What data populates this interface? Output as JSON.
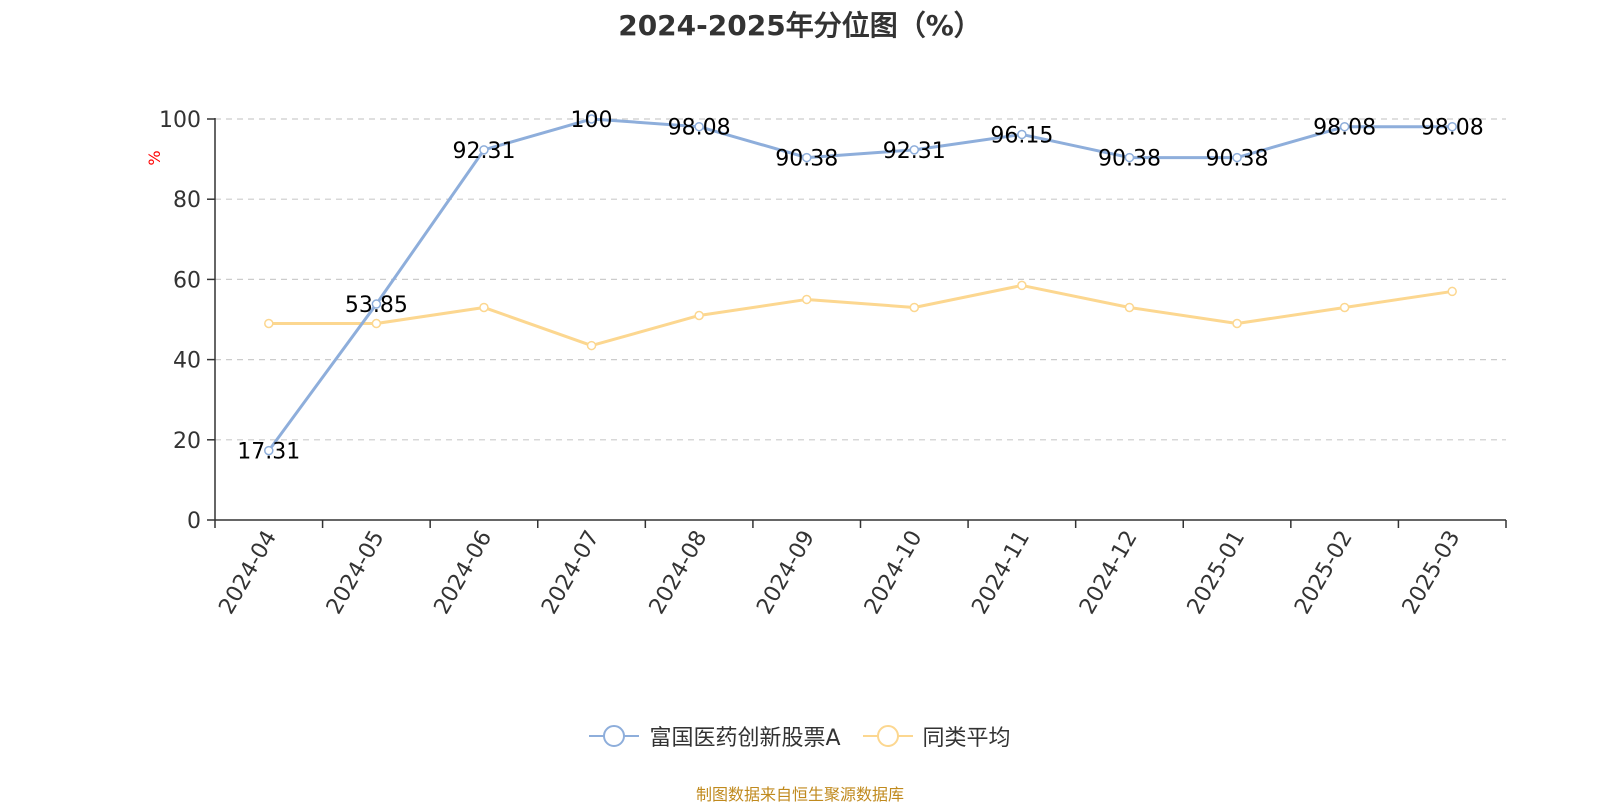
{
  "chart_data": {
    "type": "line",
    "title": "2024-2025年分位图（%）",
    "ylabel": "%",
    "xlabel": "",
    "ylim": [
      0,
      100
    ],
    "yticks": [
      0,
      20,
      40,
      60,
      80,
      100
    ],
    "grid": true,
    "legend_position": "bottom-center",
    "categories": [
      "2024-04",
      "2024-05",
      "2024-06",
      "2024-07",
      "2024-08",
      "2024-09",
      "2024-10",
      "2024-11",
      "2024-12",
      "2025-01",
      "2025-02",
      "2025-03"
    ],
    "series": [
      {
        "name": "富国医药创新股票A",
        "color": "#8eaedb",
        "values": [
          17.31,
          53.85,
          92.31,
          100,
          98.08,
          90.38,
          92.31,
          96.15,
          90.38,
          90.38,
          98.08,
          98.08
        ],
        "labels": [
          "17.31",
          "53.85",
          "92.31",
          "100",
          "98.08",
          "90.38",
          "92.31",
          "96.15",
          "90.38",
          "90.38",
          "98.08",
          "98.08"
        ]
      },
      {
        "name": "同类平均",
        "color": "#fcd790",
        "values": [
          49,
          49,
          53,
          43.5,
          51,
          55,
          53,
          58.5,
          53,
          49,
          53,
          57
        ]
      }
    ]
  },
  "source_text": "制图数据来自恒生聚源数据库",
  "colors": {
    "axis": "#333333",
    "grid": "#cccccc",
    "ylabel": "#ff0000",
    "source": "#c08a1e"
  }
}
